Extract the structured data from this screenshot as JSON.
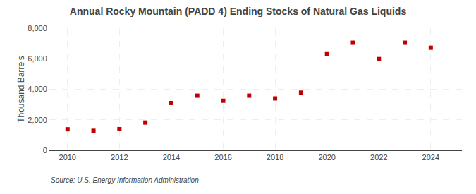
{
  "chart_data": {
    "type": "scatter",
    "title": "Annual Rocky Mountain (PADD 4) Ending Stocks of Natural Gas Liquids",
    "ylabel": "Thousand Barrels",
    "annotation": "Source: U.S. Energy Information Administration",
    "x": [
      2010,
      2011,
      2012,
      2013,
      2014,
      2015,
      2016,
      2017,
      2018,
      2019,
      2020,
      2021,
      2022,
      2023,
      2024
    ],
    "values": [
      1380,
      1280,
      1390,
      1820,
      3100,
      3580,
      3250,
      3580,
      3400,
      3780,
      6300,
      7050,
      5980,
      7050,
      6720
    ],
    "color": "#c00000",
    "marker": "square",
    "xlim": [
      2009.3,
      2025.2
    ],
    "xticks": [
      2010,
      2012,
      2014,
      2016,
      2018,
      2020,
      2022,
      2024
    ],
    "ylim": [
      0,
      8000
    ],
    "yticks": [
      0,
      {
        "value": 2000,
        "label": "2,000"
      },
      {
        "value": 4000,
        "label": "4,000"
      },
      {
        "value": 6000,
        "label": "6,000"
      },
      {
        "value": 8000,
        "label": "8,000"
      }
    ],
    "grid": true
  }
}
